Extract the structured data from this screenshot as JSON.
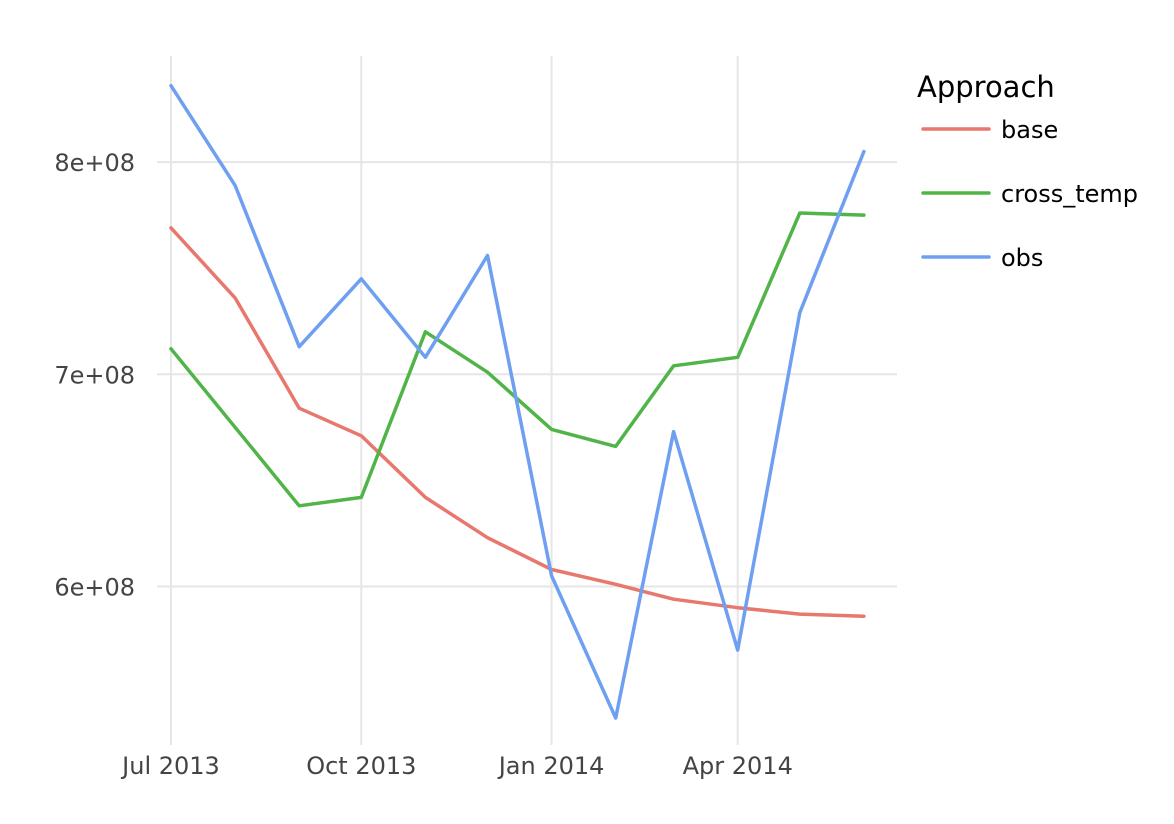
{
  "chart_data": {
    "type": "line",
    "title": "",
    "xlabel": "",
    "ylabel": "",
    "x": [
      "2013-07-01",
      "2013-08-01",
      "2013-09-01",
      "2013-10-01",
      "2013-11-01",
      "2013-12-01",
      "2014-01-01",
      "2014-02-01",
      "2014-03-01",
      "2014-04-01",
      "2014-05-01",
      "2014-06-01"
    ],
    "x_ticks": [
      "2013-07-01",
      "2013-10-01",
      "2014-01-01",
      "2014-04-01"
    ],
    "x_tick_labels": [
      "Jul 2013",
      "Oct 2013",
      "Jan 2014",
      "Apr 2014"
    ],
    "xlim": [
      "2013-07-01",
      "2014-06-17"
    ],
    "y_ticks": [
      600000000,
      700000000,
      800000000
    ],
    "y_tick_labels": [
      "6e+08",
      "7e+08",
      "8e+08"
    ],
    "ylim": [
      530000000,
      850000000
    ],
    "grid": true,
    "legend": {
      "title": "Approach",
      "position": "right"
    },
    "series": [
      {
        "name": "base",
        "color": "#e8776e",
        "values": [
          769000000,
          736000000,
          684000000,
          671000000,
          642000000,
          623000000,
          608000000,
          601000000,
          594000000,
          590000000,
          587000000,
          586000000
        ]
      },
      {
        "name": "cross_temp",
        "color": "#50b448",
        "values": [
          712000000,
          675000000,
          638000000,
          642000000,
          720000000,
          701000000,
          674000000,
          666000000,
          704000000,
          708000000,
          776000000,
          775000000
        ]
      },
      {
        "name": "obs",
        "color": "#6f9ff0",
        "values": [
          836000000,
          789000000,
          713000000,
          745000000,
          708000000,
          756000000,
          605000000,
          538000000,
          673000000,
          570000000,
          729000000,
          805000000
        ]
      }
    ]
  }
}
